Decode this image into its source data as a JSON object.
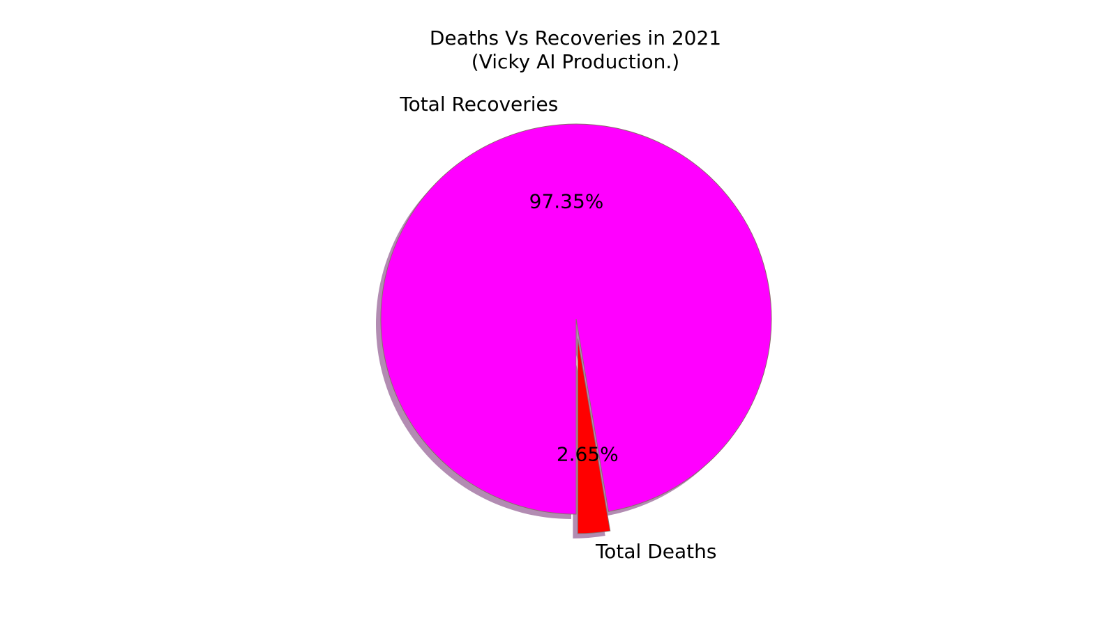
{
  "chart_data": {
    "type": "pie",
    "title": "Deaths Vs Recoveries in 2021",
    "subtitle": "(Vicky AI Production.)",
    "slices": [
      {
        "label": "Total Deaths",
        "value": 2.65,
        "pct_label": "2.65%",
        "color": "#ff0000",
        "exploded": true
      },
      {
        "label": "Total Recoveries",
        "value": 97.35,
        "pct_label": "97.35%",
        "color": "#ff00ff",
        "exploded": false
      }
    ],
    "start_angle_deg": 270,
    "shadow": true,
    "edge_color": "#8b6b6b"
  }
}
